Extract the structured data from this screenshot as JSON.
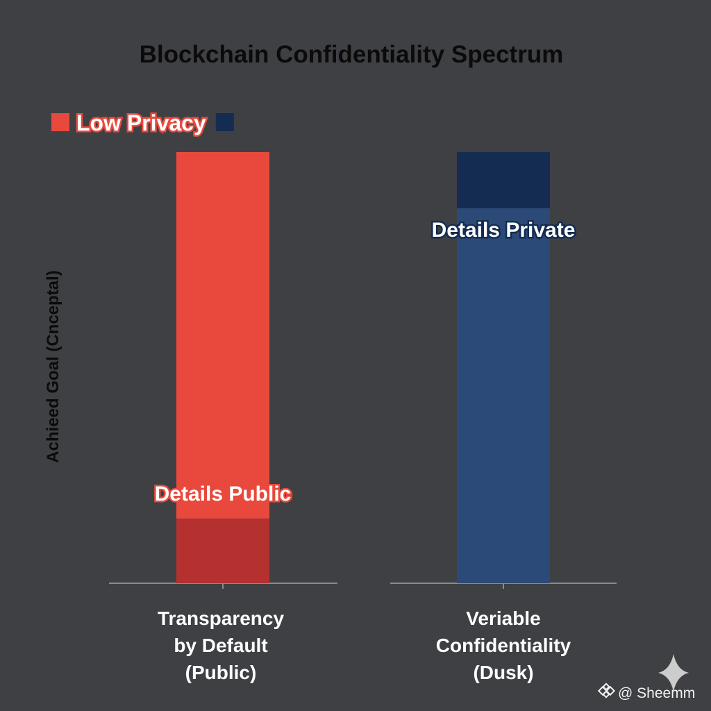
{
  "chart_data": {
    "type": "bar",
    "title": "Blockchain Confidentiality Spectrum",
    "ylabel": "Achieed Goal (Cnceptal)",
    "xlabel": "",
    "categories": [
      [
        "Transparency",
        "by Default",
        "(Public)"
      ],
      [
        "Veriable",
        "Confidentiality",
        "(Dusk)"
      ]
    ],
    "ylim": [
      0,
      100
    ],
    "bars": [
      {
        "value": 100,
        "segments": [
          {
            "value": 15,
            "color": "#b53130"
          },
          {
            "value": 85,
            "color": "#e8493c"
          }
        ],
        "annotation": "Details Public",
        "annotation_color": "#e8493c"
      },
      {
        "value": 100,
        "segments": [
          {
            "value": 87,
            "color": "#2b4a77"
          },
          {
            "value": 13,
            "color": "#142c52"
          }
        ],
        "annotation": "Details Private",
        "annotation_color": "#142c52"
      }
    ],
    "legend": [
      {
        "label": "Low Privacy",
        "color": "#e8493c"
      },
      {
        "label": "",
        "color": "#142c52"
      }
    ],
    "legend_position": "top-left",
    "grid": false
  },
  "watermark": {
    "text": "@ Sheemm",
    "icon": "binance-diamond-icon",
    "sparkle_icon": "sparkle-icon"
  }
}
